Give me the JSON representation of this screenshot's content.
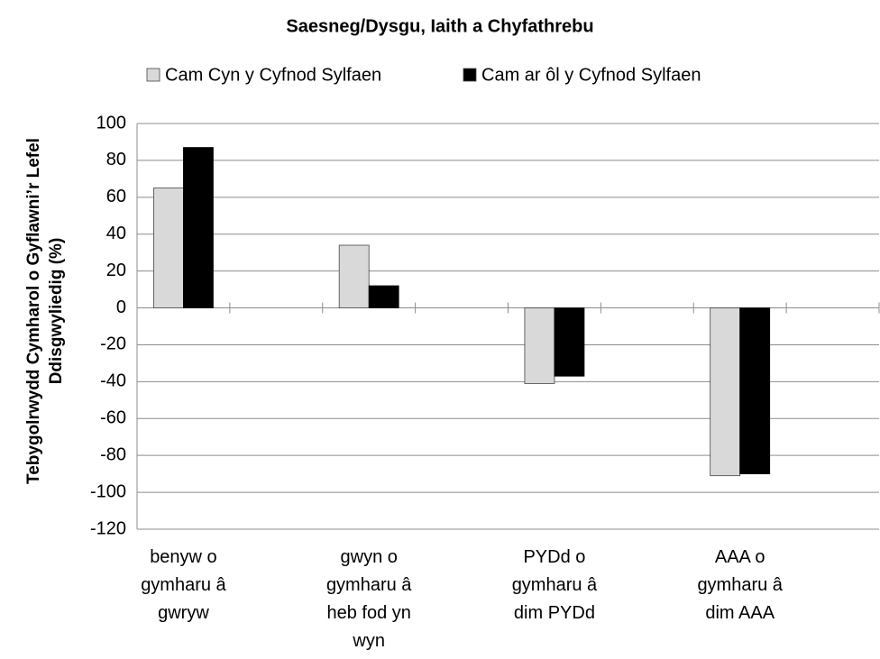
{
  "chart_data": {
    "type": "bar",
    "title": "Saesneg/Dysgu, Iaith a Chyfathrebu",
    "y_label": "Tebygolrwydd Cymharol o Gyflawni’r Lefel Ddisgwyliedig (%)",
    "categories": [
      "benyw o gymharu â gwryw",
      null,
      "gwyn o gymharu â heb fod yn wyn",
      null,
      "PYDd o gymharu â dim PYDd",
      null,
      "AAA o gymharu â dim AAA",
      null
    ],
    "series": [
      {
        "name": "Cam Cyn y Cyfnod Sylfaen",
        "color": "#d9d9d9",
        "values": [
          65,
          null,
          34,
          null,
          -41,
          null,
          -91,
          null
        ]
      },
      {
        "name": "Cam ar ôl y Cyfnod Sylfaen",
        "color": "#000000",
        "values": [
          87,
          null,
          12,
          null,
          -37,
          null,
          -90,
          null
        ]
      }
    ],
    "ylim": [
      -120,
      100
    ],
    "yticks": [
      -120,
      -100,
      -80,
      -60,
      -40,
      -20,
      0,
      20,
      40,
      60,
      80,
      100
    ],
    "grid": true,
    "legend": "top"
  }
}
